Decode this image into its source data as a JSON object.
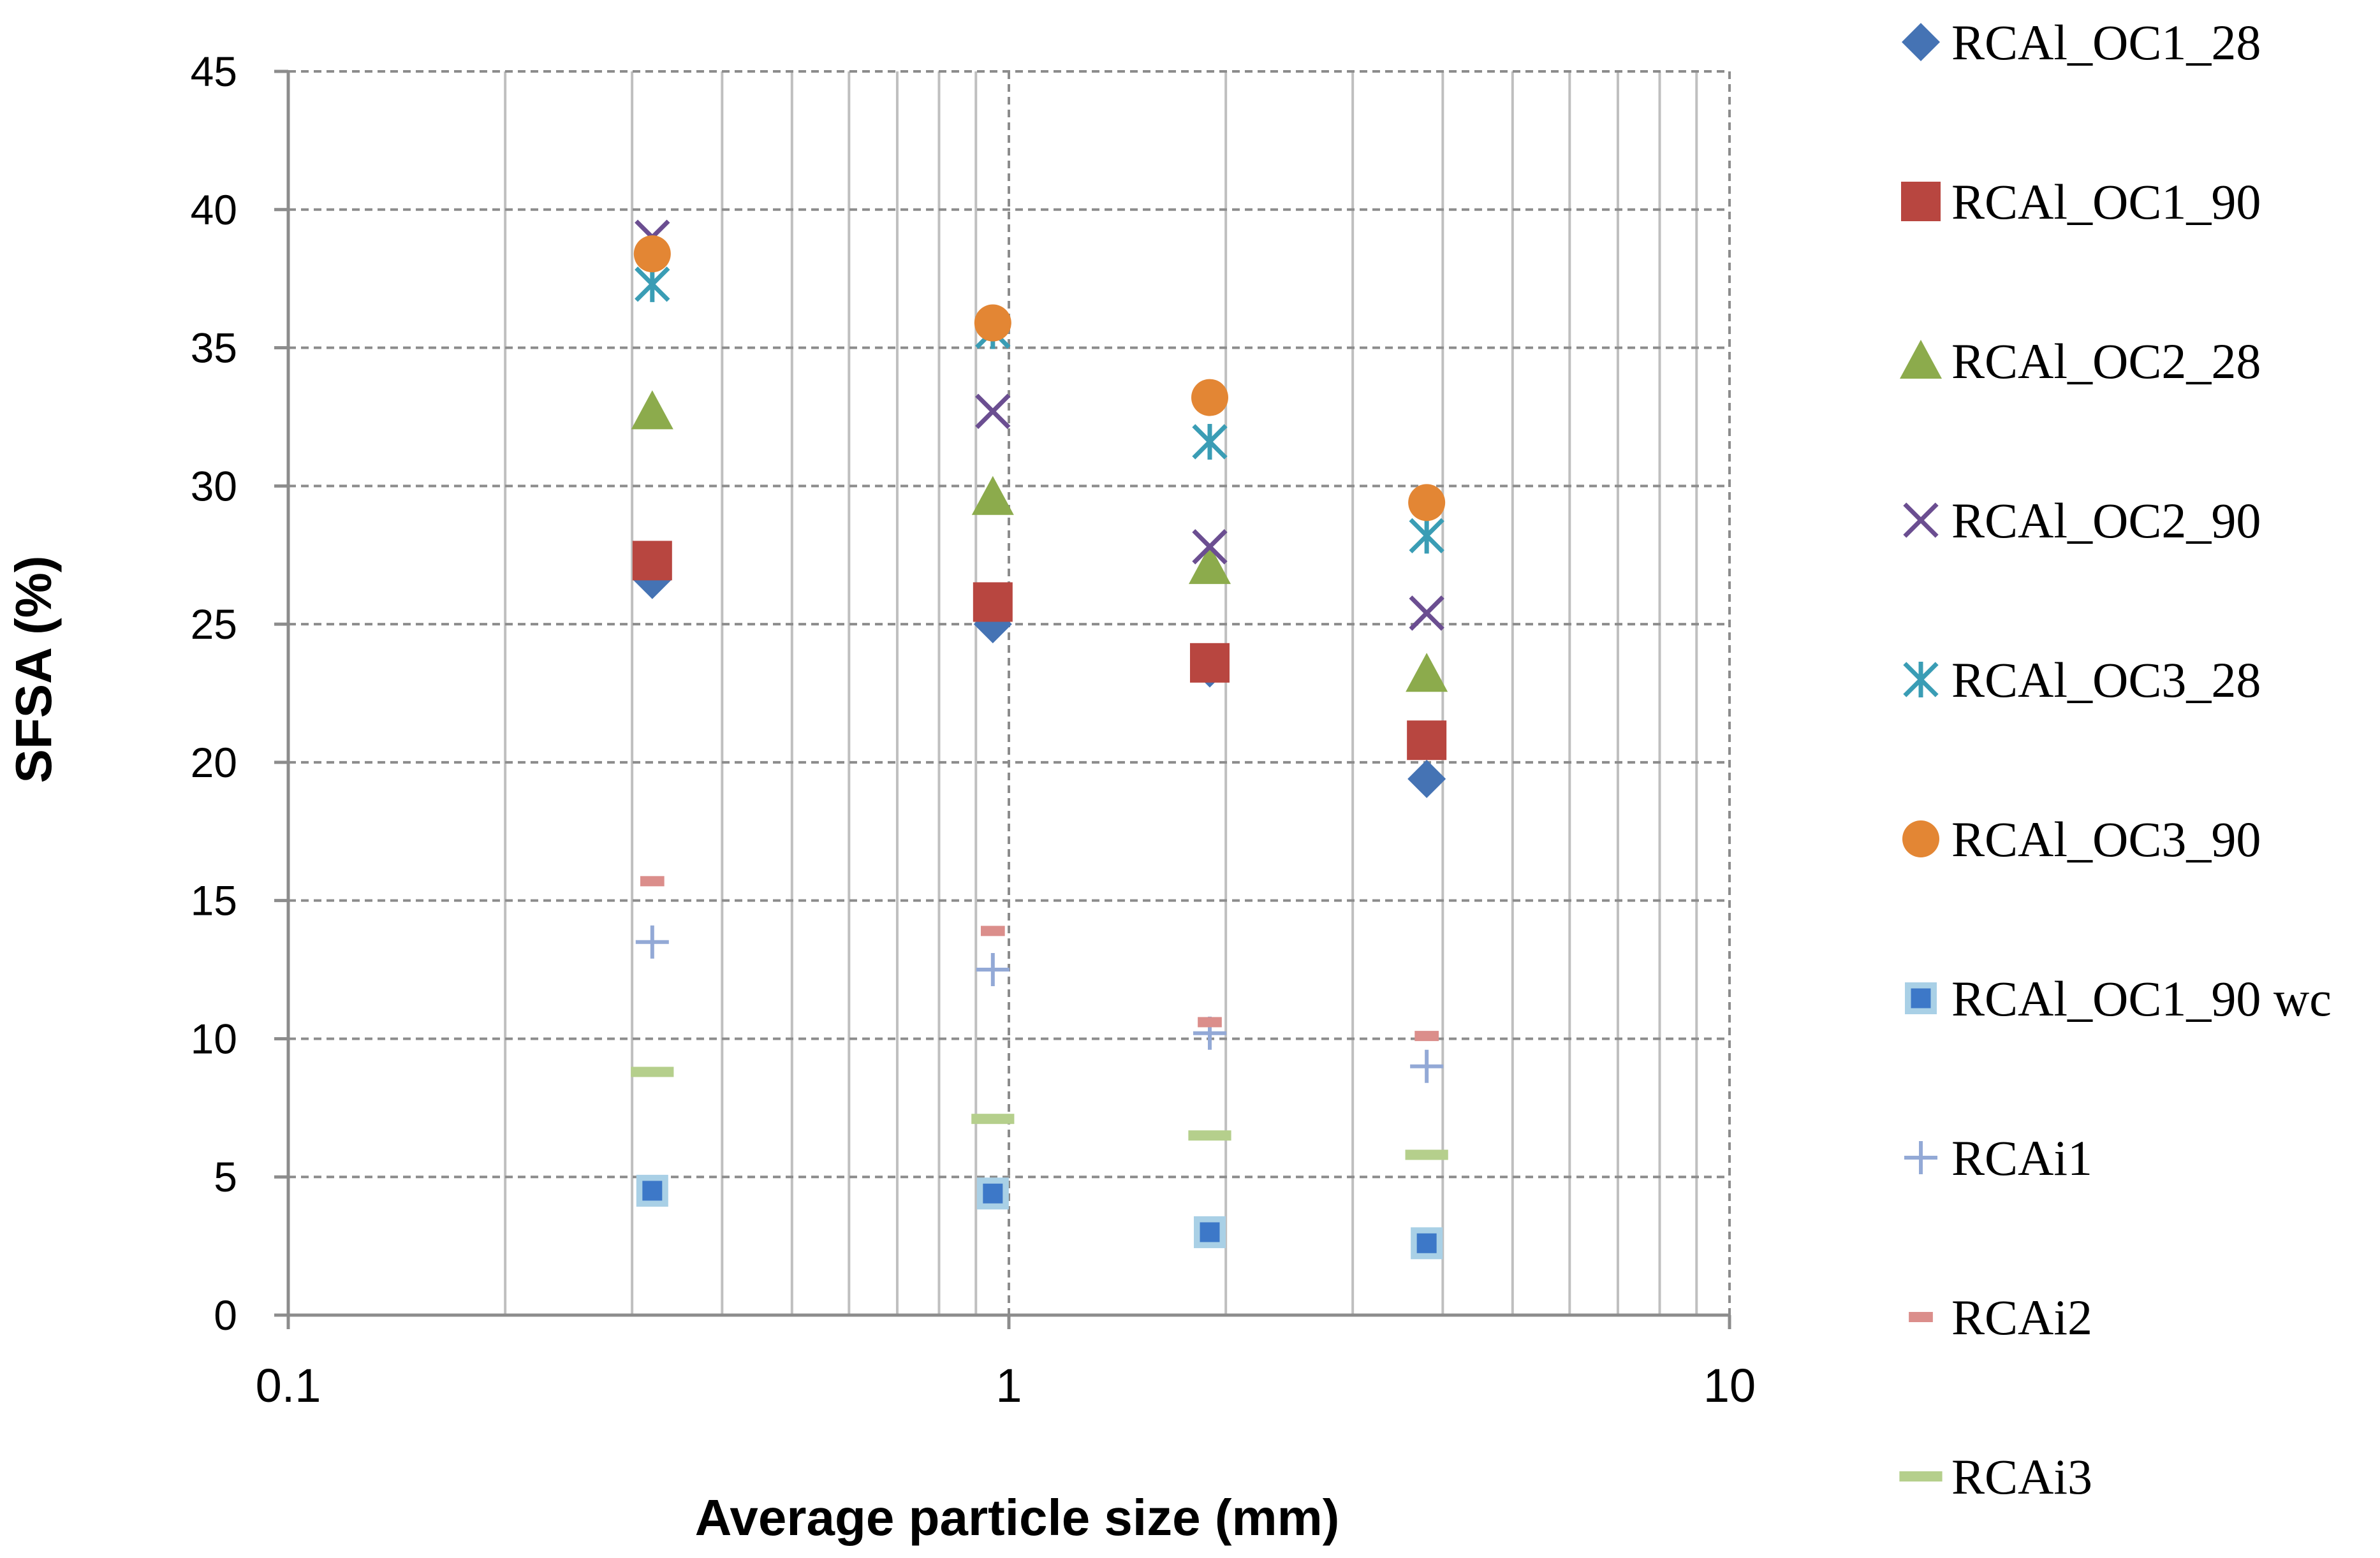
{
  "chart_data": {
    "type": "scatter",
    "xscale": "log",
    "xlim": [
      0.1,
      10
    ],
    "ylim": [
      0,
      45
    ],
    "xticks": [
      0.1,
      1,
      10
    ],
    "yticks": [
      0,
      5,
      10,
      15,
      20,
      25,
      30,
      35,
      40,
      45
    ],
    "x_tick_labels": [
      "0.1",
      "1",
      "10"
    ],
    "y_tick_labels": [
      "0",
      "5",
      "10",
      "15",
      "20",
      "25",
      "30",
      "35",
      "40",
      "45"
    ],
    "xlabel": "Average particle size (mm)",
    "ylabel": "SFSA (%)",
    "grid": true,
    "legend_position": "right",
    "x": [
      0.32,
      0.95,
      1.9,
      3.8
    ],
    "series": [
      {
        "name": "RCAl_OC1_28",
        "marker": "diamond",
        "color": "#4573B4",
        "values": [
          26.6,
          25.0,
          23.4,
          19.4
        ]
      },
      {
        "name": "RCAl_OC1_90",
        "marker": "square",
        "color": "#B84640",
        "values": [
          27.3,
          25.8,
          23.6,
          20.8
        ]
      },
      {
        "name": "RCAl_OC2_28",
        "marker": "triangle",
        "color": "#8CAB4C",
        "values": [
          32.7,
          29.6,
          27.1,
          23.2
        ]
      },
      {
        "name": "RCAl_OC2_90",
        "marker": "x",
        "color": "#6B4E91",
        "values": [
          39.0,
          32.7,
          27.8,
          25.4
        ]
      },
      {
        "name": "RCAl_OC3_28",
        "marker": "star",
        "color": "#3A9DB5",
        "values": [
          37.3,
          35.6,
          31.6,
          28.2
        ]
      },
      {
        "name": "RCAl_OC3_90",
        "marker": "circle",
        "color": "#E38634",
        "values": [
          38.4,
          35.9,
          33.2,
          29.4
        ]
      },
      {
        "name": "RCAl_OC1_90 wc",
        "marker": "square-outlined",
        "color": "#3D78C8",
        "values": [
          4.5,
          4.4,
          3.0,
          2.6
        ]
      },
      {
        "name": "RCAi1",
        "marker": "plus",
        "color": "#93A9D6",
        "values": [
          13.5,
          12.5,
          10.2,
          9.0
        ]
      },
      {
        "name": "RCAi2",
        "marker": "dash",
        "color": "#DB8E8B",
        "values": [
          15.7,
          13.9,
          10.6,
          10.1
        ]
      },
      {
        "name": "RCAi3",
        "marker": "long-dash",
        "color": "#B5CF8C",
        "values": [
          8.8,
          7.1,
          6.5,
          5.8
        ]
      }
    ],
    "colors": {
      "major_grid": "#8C8C8C",
      "minor_grid": "#BFBFBF",
      "axis": "#8C8C8C",
      "outline_light": "#A9D0E6"
    }
  }
}
